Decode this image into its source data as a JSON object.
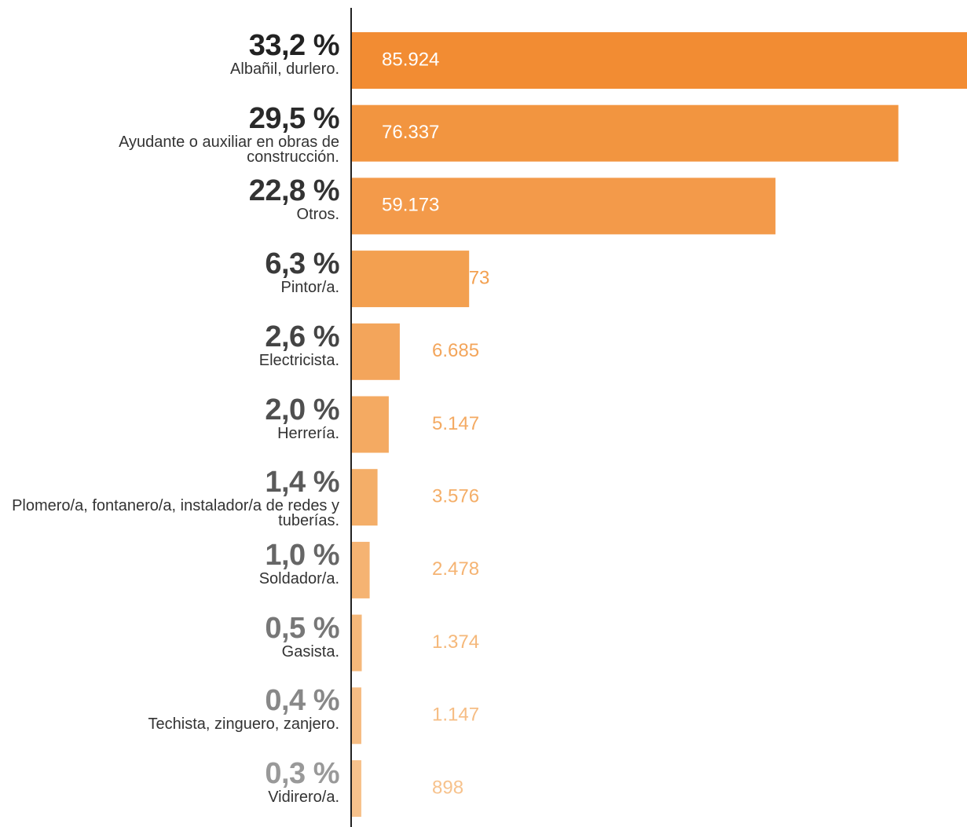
{
  "chart_data": {
    "type": "bar",
    "orientation": "horizontal",
    "categories": [
      "Albañil, durlero.",
      "Ayudante o auxiliar en obras de construcción.",
      "Otros.",
      "Pintor/a.",
      "Electricista.",
      "Herrería.",
      "Plomero/a, fontanero/a, instalador/a de redes y tuberías.",
      "Soldador/a.",
      "Gasista.",
      "Techista, zinguero, zanjero.",
      "Vidirero/a."
    ],
    "values": [
      85924,
      76337,
      59173,
      16373,
      6685,
      5147,
      3576,
      2478,
      1374,
      1147,
      898
    ],
    "value_labels": [
      "85.924",
      "76.337",
      "59.173",
      "16.373",
      "6.685",
      "5.147",
      "3.576",
      "2.478",
      "1.374",
      "1.147",
      "898"
    ],
    "percentages": [
      33.2,
      29.5,
      22.8,
      6.3,
      2.6,
      2.0,
      1.4,
      1.0,
      0.5,
      0.4,
      0.3
    ],
    "percentage_labels": [
      "33,2 %",
      "29,5 %",
      "22,8 %",
      "6,3 %",
      "2,6 %",
      "2,0 %",
      "1,4 %",
      "1,0 %",
      "0,5 %",
      "0,4 %",
      "0,3 %"
    ],
    "colors": [
      "#f28c33",
      "#f29540",
      "#f39a4a",
      "#f3a050",
      "#f3a55b",
      "#f4aa62",
      "#f4ae68",
      "#f5b372",
      "#f5b87a",
      "#f6bd84",
      "#f7c28c"
    ],
    "percentage_colors": [
      "#222222",
      "#2a2a2a",
      "#333333",
      "#3a3a3a",
      "#444444",
      "#4f4f4f",
      "#5a5a5a",
      "#666666",
      "#777777",
      "#888888",
      "#999999"
    ]
  }
}
